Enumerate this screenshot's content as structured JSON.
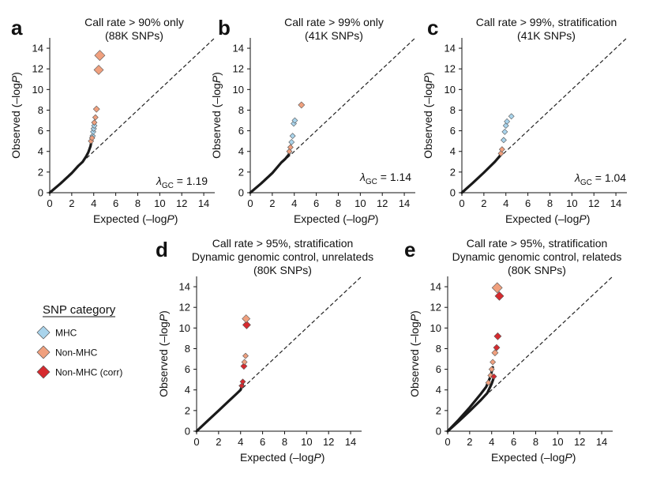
{
  "colors": {
    "mhc": "#a9d4ec",
    "non_mhc": "#f0a07e",
    "non_mhc_corr": "#d62a2f",
    "observed_line": "#1a1a1a",
    "diagonal": "#222222"
  },
  "legend": {
    "title": "SNP category",
    "items": [
      {
        "label": "MHC",
        "color": "#a9d4ec"
      },
      {
        "label": "Non-MHC",
        "color": "#f0a07e"
      },
      {
        "label": "Non-MHC (corr)",
        "color": "#d62a2f"
      }
    ]
  },
  "chart_data": [
    {
      "id": "a",
      "panel_letter": "a",
      "type": "scatter",
      "title_lines": [
        "Call rate > 90% only",
        "(88K SNPs)"
      ],
      "xlabel": "Expected (–log",
      "ylabel": "Observed (–log",
      "italic_suffix": "P",
      "xlim": [
        0,
        15
      ],
      "ylim": [
        0,
        15
      ],
      "xticks": [
        0,
        2,
        4,
        6,
        8,
        10,
        12,
        14
      ],
      "yticks": [
        0,
        2,
        4,
        6,
        8,
        10,
        12,
        14
      ],
      "lambda_symbol": "λ",
      "lambda_sub": "GC",
      "lambda_value": " = 1.19",
      "observed_curve": [
        [
          0,
          0
        ],
        [
          1,
          0.9
        ],
        [
          2,
          1.9
        ],
        [
          2.6,
          2.6
        ],
        [
          3.0,
          3.0
        ],
        [
          3.3,
          3.5
        ],
        [
          3.5,
          3.9
        ],
        [
          3.7,
          4.5
        ],
        [
          3.8,
          5.0
        ],
        [
          3.9,
          5.4
        ]
      ],
      "points": [
        {
          "x": 3.9,
          "y": 5.5,
          "cat": "mhc",
          "size": 3.5
        },
        {
          "x": 3.95,
          "y": 5.9,
          "cat": "mhc",
          "size": 3.5
        },
        {
          "x": 4.0,
          "y": 6.2,
          "cat": "mhc",
          "size": 3.5
        },
        {
          "x": 4.05,
          "y": 6.5,
          "cat": "mhc",
          "size": 3.5
        },
        {
          "x": 3.75,
          "y": 5.0,
          "cat": "non_mhc",
          "size": 3.5
        },
        {
          "x": 3.85,
          "y": 5.3,
          "cat": "non_mhc",
          "size": 3.5
        },
        {
          "x": 4.05,
          "y": 6.8,
          "cat": "non_mhc",
          "size": 3.5
        },
        {
          "x": 4.15,
          "y": 7.3,
          "cat": "non_mhc",
          "size": 3.5
        },
        {
          "x": 4.25,
          "y": 8.1,
          "cat": "non_mhc",
          "size": 4
        },
        {
          "x": 4.45,
          "y": 11.9,
          "cat": "non_mhc",
          "size": 6
        },
        {
          "x": 4.55,
          "y": 13.3,
          "cat": "non_mhc",
          "size": 6.5
        }
      ]
    },
    {
      "id": "b",
      "panel_letter": "b",
      "type": "scatter",
      "title_lines": [
        "Call rate > 99% only",
        "(41K SNPs)"
      ],
      "xlabel": "Expected (–log",
      "ylabel": "Observed (–log",
      "italic_suffix": "P",
      "xlim": [
        0,
        15
      ],
      "ylim": [
        0,
        15
      ],
      "xticks": [
        0,
        2,
        4,
        6,
        8,
        10,
        12,
        14
      ],
      "yticks": [
        0,
        2,
        4,
        6,
        8,
        10,
        12,
        14
      ],
      "lambda_symbol": "λ",
      "lambda_sub": "GC",
      "lambda_value": " = 1.14",
      "observed_curve": [
        [
          0,
          0
        ],
        [
          1,
          0.9
        ],
        [
          2,
          1.9
        ],
        [
          2.8,
          2.9
        ],
        [
          3.2,
          3.3
        ],
        [
          3.5,
          3.7
        ],
        [
          3.6,
          4.0
        ]
      ],
      "points": [
        {
          "x": 3.55,
          "y": 4.0,
          "cat": "non_mhc",
          "size": 3.5
        },
        {
          "x": 3.65,
          "y": 4.4,
          "cat": "non_mhc",
          "size": 3.5
        },
        {
          "x": 3.75,
          "y": 4.9,
          "cat": "mhc",
          "size": 3.5
        },
        {
          "x": 3.85,
          "y": 5.5,
          "cat": "mhc",
          "size": 3.5
        },
        {
          "x": 3.95,
          "y": 6.7,
          "cat": "mhc",
          "size": 3.5
        },
        {
          "x": 4.05,
          "y": 7.0,
          "cat": "mhc",
          "size": 3.5
        },
        {
          "x": 4.65,
          "y": 8.5,
          "cat": "non_mhc",
          "size": 4
        }
      ]
    },
    {
      "id": "c",
      "panel_letter": "c",
      "type": "scatter",
      "title_lines": [
        "Call rate > 99%, stratification",
        "(41K SNPs)"
      ],
      "xlabel": "Expected (–log",
      "ylabel": "Observed (–log",
      "italic_suffix": "P",
      "xlim": [
        0,
        15
      ],
      "ylim": [
        0,
        15
      ],
      "xticks": [
        0,
        2,
        4,
        6,
        8,
        10,
        12,
        14
      ],
      "yticks": [
        0,
        2,
        4,
        6,
        8,
        10,
        12,
        14
      ],
      "lambda_symbol": "λ",
      "lambda_sub": "GC",
      "lambda_value": " = 1.04",
      "observed_curve": [
        [
          0,
          0
        ],
        [
          1,
          0.95
        ],
        [
          2,
          1.95
        ],
        [
          3,
          3.0
        ],
        [
          3.4,
          3.5
        ],
        [
          3.6,
          3.8
        ]
      ],
      "points": [
        {
          "x": 3.55,
          "y": 3.8,
          "cat": "non_mhc",
          "size": 3.5
        },
        {
          "x": 3.65,
          "y": 4.2,
          "cat": "non_mhc",
          "size": 3.5
        },
        {
          "x": 3.8,
          "y": 5.1,
          "cat": "mhc",
          "size": 3.5
        },
        {
          "x": 3.9,
          "y": 5.9,
          "cat": "mhc",
          "size": 3.5
        },
        {
          "x": 4.0,
          "y": 6.5,
          "cat": "mhc",
          "size": 3.5
        },
        {
          "x": 4.1,
          "y": 6.9,
          "cat": "mhc",
          "size": 3.5
        },
        {
          "x": 4.5,
          "y": 7.4,
          "cat": "mhc",
          "size": 3.5
        }
      ]
    },
    {
      "id": "d",
      "panel_letter": "d",
      "type": "scatter",
      "title_lines": [
        "Call rate > 95%, stratification",
        "Dynamic genomic control, unrelateds",
        "(80K SNPs)"
      ],
      "xlabel": "Expected (–log",
      "ylabel": "Observed (–log",
      "italic_suffix": "P",
      "xlim": [
        0,
        15
      ],
      "ylim": [
        0,
        15
      ],
      "xticks": [
        0,
        2,
        4,
        6,
        8,
        10,
        12,
        14
      ],
      "yticks": [
        0,
        2,
        4,
        6,
        8,
        10,
        12,
        14
      ],
      "observed_curve": [
        [
          0,
          0
        ],
        [
          1,
          1.0
        ],
        [
          2,
          2.0
        ],
        [
          3,
          3.0
        ],
        [
          3.6,
          3.6
        ],
        [
          4.0,
          4.0
        ],
        [
          4.2,
          4.6
        ]
      ],
      "points": [
        {
          "x": 4.1,
          "y": 4.4,
          "cat": "non_mhc_corr",
          "size": 3.5
        },
        {
          "x": 4.2,
          "y": 4.8,
          "cat": "non_mhc_corr",
          "size": 3.5
        },
        {
          "x": 4.3,
          "y": 6.3,
          "cat": "non_mhc_corr",
          "size": 4
        },
        {
          "x": 4.35,
          "y": 6.7,
          "cat": "non_mhc",
          "size": 3.5
        },
        {
          "x": 4.45,
          "y": 7.3,
          "cat": "non_mhc",
          "size": 3.5
        },
        {
          "x": 4.55,
          "y": 10.3,
          "cat": "non_mhc_corr",
          "size": 5
        },
        {
          "x": 4.5,
          "y": 10.9,
          "cat": "non_mhc",
          "size": 5
        }
      ]
    },
    {
      "id": "e",
      "panel_letter": "e",
      "type": "scatter",
      "title_lines": [
        "Call rate > 95%, stratification",
        "Dynamic genomic control, relateds",
        "(80K SNPs)"
      ],
      "xlabel": "Expected (–log",
      "ylabel": "Observed (–log",
      "italic_suffix": "P",
      "xlim": [
        0,
        15
      ],
      "ylim": [
        0,
        15
      ],
      "xticks": [
        0,
        2,
        4,
        6,
        8,
        10,
        12,
        14
      ],
      "yticks": [
        0,
        2,
        4,
        6,
        8,
        10,
        12,
        14
      ],
      "observed_curve": [
        [
          0,
          0
        ],
        [
          1,
          1.1
        ],
        [
          2,
          2.3
        ],
        [
          3,
          3.6
        ],
        [
          3.5,
          4.3
        ],
        [
          3.9,
          5.3
        ],
        [
          4.1,
          6.2
        ]
      ],
      "observed_curve_2": [
        [
          0,
          0
        ],
        [
          1,
          0.95
        ],
        [
          2,
          1.95
        ],
        [
          3,
          3.0
        ],
        [
          3.6,
          3.7
        ],
        [
          4.0,
          4.6
        ],
        [
          4.2,
          5.2
        ]
      ],
      "points": [
        {
          "x": 3.7,
          "y": 4.7,
          "cat": "non_mhc",
          "size": 3.5
        },
        {
          "x": 3.9,
          "y": 5.4,
          "cat": "non_mhc",
          "size": 3.5
        },
        {
          "x": 4.0,
          "y": 6.0,
          "cat": "non_mhc",
          "size": 3.5
        },
        {
          "x": 4.2,
          "y": 5.3,
          "cat": "non_mhc_corr",
          "size": 3.5
        },
        {
          "x": 4.1,
          "y": 6.7,
          "cat": "non_mhc",
          "size": 3.5
        },
        {
          "x": 4.3,
          "y": 7.6,
          "cat": "non_mhc",
          "size": 4
        },
        {
          "x": 4.45,
          "y": 8.1,
          "cat": "non_mhc_corr",
          "size": 4
        },
        {
          "x": 4.55,
          "y": 9.2,
          "cat": "non_mhc_corr",
          "size": 4.5
        },
        {
          "x": 4.5,
          "y": 13.9,
          "cat": "non_mhc",
          "size": 6.5
        },
        {
          "x": 4.7,
          "y": 13.1,
          "cat": "non_mhc_corr",
          "size": 5.5
        }
      ]
    }
  ]
}
